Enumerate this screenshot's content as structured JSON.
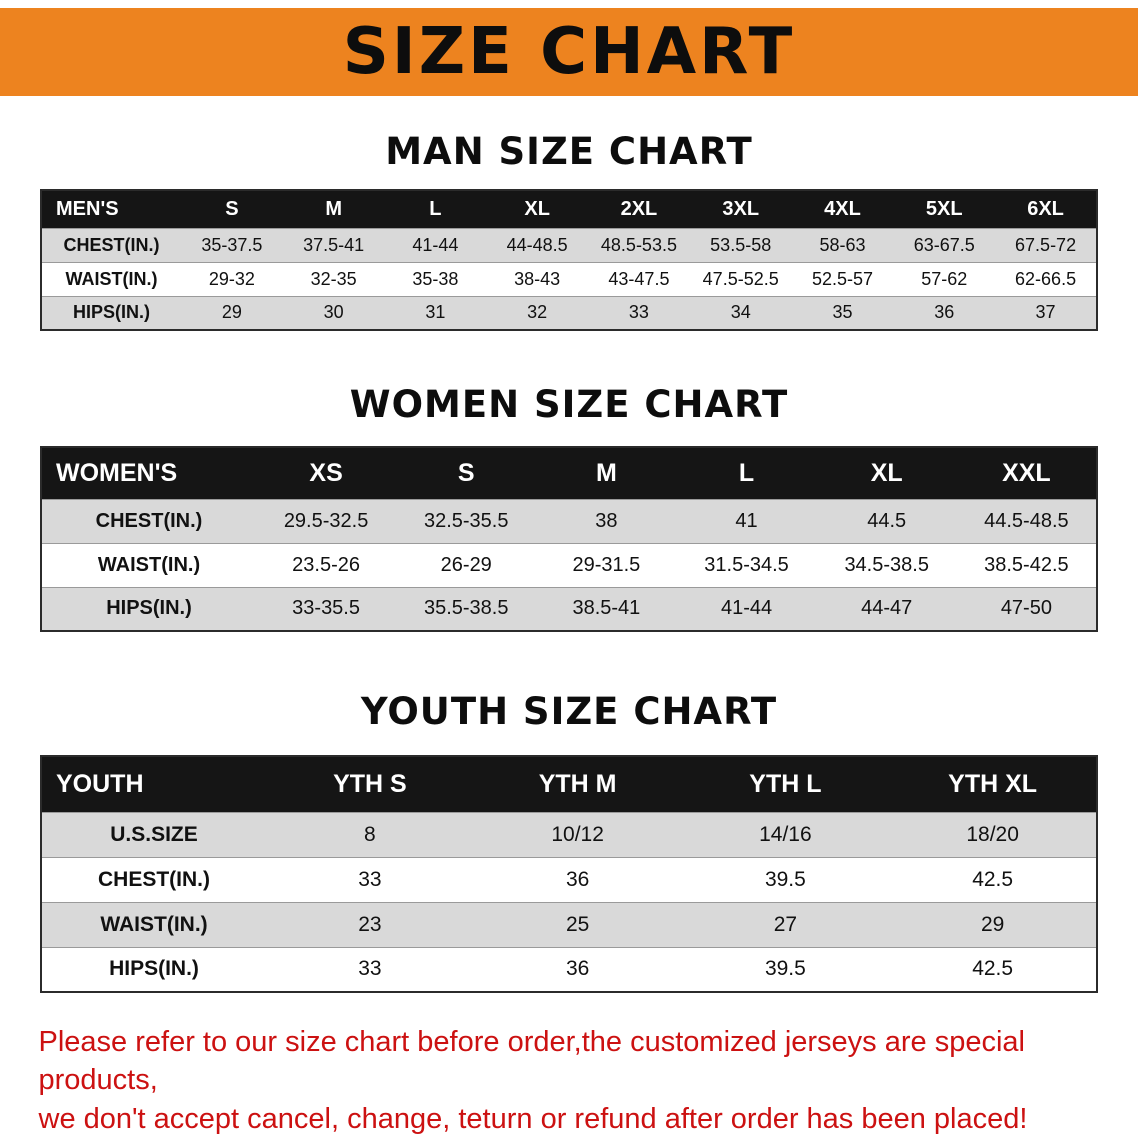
{
  "banner": {
    "title": "SIZE CHART",
    "bg_color": "#ED831F",
    "text_color": "#0d0d0d"
  },
  "colors": {
    "table_header_bg": "#151515",
    "table_header_text": "#ffffff",
    "row_alt_bg": "#d9d9d9",
    "footer_text": "#cc1111"
  },
  "sections": [
    {
      "heading": "MAN SIZE CHART",
      "table": {
        "header_label": "MEN'S",
        "columns": [
          "S",
          "M",
          "L",
          "XL",
          "2XL",
          "3XL",
          "4XL",
          "5XL",
          "6XL"
        ],
        "rows": [
          {
            "label": "CHEST(IN.)",
            "values": [
              "35-37.5",
              "37.5-41",
              "41-44",
              "44-48.5",
              "48.5-53.5",
              "53.5-58",
              "58-63",
              "63-67.5",
              "67.5-72"
            ]
          },
          {
            "label": "WAIST(IN.)",
            "values": [
              "29-32",
              "32-35",
              "35-38",
              "38-43",
              "43-47.5",
              "47.5-52.5",
              "52.5-57",
              "57-62",
              "62-66.5"
            ]
          },
          {
            "label": "HIPS(IN.)",
            "values": [
              "29",
              "30",
              "31",
              "32",
              "33",
              "34",
              "35",
              "36",
              "37"
            ]
          }
        ]
      }
    },
    {
      "heading": "WOMEN SIZE CHART",
      "table": {
        "header_label": "WOMEN'S",
        "columns": [
          "XS",
          "S",
          "M",
          "L",
          "XL",
          "XXL"
        ],
        "rows": [
          {
            "label": "CHEST(IN.)",
            "values": [
              "29.5-32.5",
              "32.5-35.5",
              "38",
              "41",
              "44.5",
              "44.5-48.5"
            ]
          },
          {
            "label": "WAIST(IN.)",
            "values": [
              "23.5-26",
              "26-29",
              "29-31.5",
              "31.5-34.5",
              "34.5-38.5",
              "38.5-42.5"
            ]
          },
          {
            "label": "HIPS(IN.)",
            "values": [
              "33-35.5",
              "35.5-38.5",
              "38.5-41",
              "41-44",
              "44-47",
              "47-50"
            ]
          }
        ]
      }
    },
    {
      "heading": "YOUTH SIZE CHART",
      "table": {
        "header_label": "YOUTH",
        "columns": [
          "YTH S",
          "YTH M",
          "YTH L",
          "YTH XL"
        ],
        "rows": [
          {
            "label": "U.S.SIZE",
            "values": [
              "8",
              "10/12",
              "14/16",
              "18/20"
            ]
          },
          {
            "label": "CHEST(IN.)",
            "values": [
              "33",
              "36",
              "39.5",
              "42.5"
            ]
          },
          {
            "label": "WAIST(IN.)",
            "values": [
              "23",
              "25",
              "27",
              "29"
            ]
          },
          {
            "label": "HIPS(IN.)",
            "values": [
              "33",
              "36",
              "39.5",
              "42.5"
            ]
          }
        ]
      }
    }
  ],
  "footer": {
    "line1": "Please refer to our size chart before order,the customized jerseys are special products,",
    "line2": "we don't accept cancel, change, teturn or refund after order has been placed!"
  }
}
